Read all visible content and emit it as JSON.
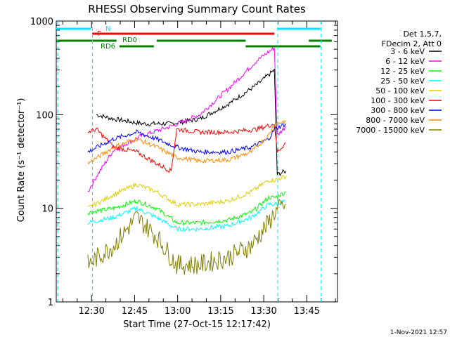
{
  "chart_data": {
    "type": "line",
    "title": "RHESSI Observing Summary Count Rates",
    "xlabel": "Start Time (27-Oct-15 12:17:42)",
    "ylabel": "Count Rate (s⁻¹ detector⁻¹)",
    "yscale": "log",
    "ylim": [
      1,
      1000
    ],
    "xlim_minutes": [
      0,
      98
    ],
    "x_ticks": [
      {
        "label": "12:30",
        "minute": 12.3
      },
      {
        "label": "12:45",
        "minute": 27.3
      },
      {
        "label": "13:00",
        "minute": 42.3
      },
      {
        "label": "13:15",
        "minute": 57.3
      },
      {
        "label": "13:30",
        "minute": 72.3
      },
      {
        "label": "13:45",
        "minute": 87.3
      }
    ],
    "y_ticks": [
      {
        "label": "1",
        "value": 1
      },
      {
        "label": "10",
        "value": 10
      },
      {
        "label": "100",
        "value": 100
      },
      {
        "label": "1000",
        "value": 1000
      }
    ],
    "legend_header": [
      "Det 1,5,7,",
      "FDecim 2, Att 0"
    ],
    "legend_position": "right",
    "series": [
      {
        "name": "3 - 6 keV",
        "color": "#000000",
        "points": [
          [
            14,
            100
          ],
          [
            20,
            90
          ],
          [
            30,
            80
          ],
          [
            40,
            80
          ],
          [
            50,
            90
          ],
          [
            60,
            130
          ],
          [
            70,
            210
          ],
          [
            76,
            300
          ],
          [
            77,
            23
          ],
          [
            80,
            25
          ]
        ]
      },
      {
        "name": "6 - 12 keV",
        "color": "#ff00ff",
        "points": [
          [
            11,
            15
          ],
          [
            14,
            22
          ],
          [
            20,
            42
          ],
          [
            30,
            60
          ],
          [
            40,
            75
          ],
          [
            50,
            100
          ],
          [
            60,
            190
          ],
          [
            70,
            380
          ],
          [
            76,
            520
          ],
          [
            77,
            60
          ],
          [
            80,
            75
          ]
        ]
      },
      {
        "name": "12 - 25 keV",
        "color": "#00ff00",
        "points": [
          [
            11,
            9
          ],
          [
            20,
            10
          ],
          [
            28,
            12
          ],
          [
            35,
            10
          ],
          [
            42,
            7
          ],
          [
            50,
            7
          ],
          [
            60,
            7.5
          ],
          [
            68,
            9
          ],
          [
            74,
            13
          ],
          [
            76,
            13
          ],
          [
            80,
            15
          ]
        ]
      },
      {
        "name": "25 - 50 keV",
        "color": "#00ffff",
        "points": [
          [
            11,
            7
          ],
          [
            20,
            8
          ],
          [
            28,
            10
          ],
          [
            35,
            8
          ],
          [
            42,
            6
          ],
          [
            50,
            6
          ],
          [
            60,
            6.5
          ],
          [
            68,
            8
          ],
          [
            74,
            11
          ],
          [
            76,
            11
          ],
          [
            80,
            12
          ]
        ]
      },
      {
        "name": "50 - 100 keV",
        "color": "#e0d000",
        "points": [
          [
            11,
            10
          ],
          [
            20,
            14
          ],
          [
            28,
            18
          ],
          [
            35,
            15
          ],
          [
            42,
            11
          ],
          [
            50,
            11
          ],
          [
            60,
            12
          ],
          [
            68,
            15
          ],
          [
            74,
            20
          ],
          [
            76,
            20
          ],
          [
            80,
            22
          ]
        ]
      },
      {
        "name": "100 - 300 keV",
        "color": "#ff0000",
        "points": [
          [
            11,
            65
          ],
          [
            14,
            70
          ],
          [
            20,
            45
          ],
          [
            28,
            40
          ],
          [
            35,
            30
          ],
          [
            40,
            25
          ],
          [
            42,
            70
          ],
          [
            50,
            65
          ],
          [
            60,
            65
          ],
          [
            70,
            70
          ],
          [
            76,
            80
          ],
          [
            77,
            40
          ],
          [
            80,
            50
          ]
        ]
      },
      {
        "name": "300 - 800 keV",
        "color": "#0000ff",
        "points": [
          [
            11,
            40
          ],
          [
            20,
            55
          ],
          [
            28,
            65
          ],
          [
            35,
            55
          ],
          [
            42,
            45
          ],
          [
            50,
            40
          ],
          [
            60,
            40
          ],
          [
            68,
            45
          ],
          [
            74,
            55
          ],
          [
            76,
            70
          ],
          [
            80,
            80
          ]
        ]
      },
      {
        "name": "800 - 7000 keV",
        "color": "#ff8c00",
        "points": [
          [
            11,
            30
          ],
          [
            20,
            45
          ],
          [
            28,
            55
          ],
          [
            35,
            45
          ],
          [
            42,
            35
          ],
          [
            50,
            32
          ],
          [
            60,
            33
          ],
          [
            68,
            40
          ],
          [
            74,
            60
          ],
          [
            76,
            80
          ],
          [
            80,
            85
          ]
        ]
      },
      {
        "name": "7000 - 15000 keV",
        "color": "#808000",
        "points": [
          [
            11,
            2.5
          ],
          [
            20,
            4
          ],
          [
            28,
            8
          ],
          [
            35,
            5
          ],
          [
            42,
            2.5
          ],
          [
            50,
            2.5
          ],
          [
            60,
            3
          ],
          [
            68,
            4
          ],
          [
            74,
            7
          ],
          [
            76,
            9
          ],
          [
            80,
            11
          ]
        ]
      }
    ],
    "flag_bars": [
      {
        "label": "N",
        "color": "#00e5ff",
        "segments": [
          [
            0,
            12
          ],
          [
            77,
            92
          ]
        ]
      },
      {
        "label": "F",
        "color": "#ff0000",
        "segments": [
          [
            12.5,
            76
          ]
        ]
      },
      {
        "label": "RD0",
        "color": "#008000",
        "segments": [
          [
            0,
            21
          ],
          [
            35,
            66
          ],
          [
            88,
            96
          ]
        ]
      },
      {
        "label": "RD6",
        "color": "#008000",
        "segments": [
          [
            22,
            34
          ],
          [
            66,
            92
          ]
        ]
      }
    ],
    "footer": "1-Nov-2021 12:57"
  }
}
